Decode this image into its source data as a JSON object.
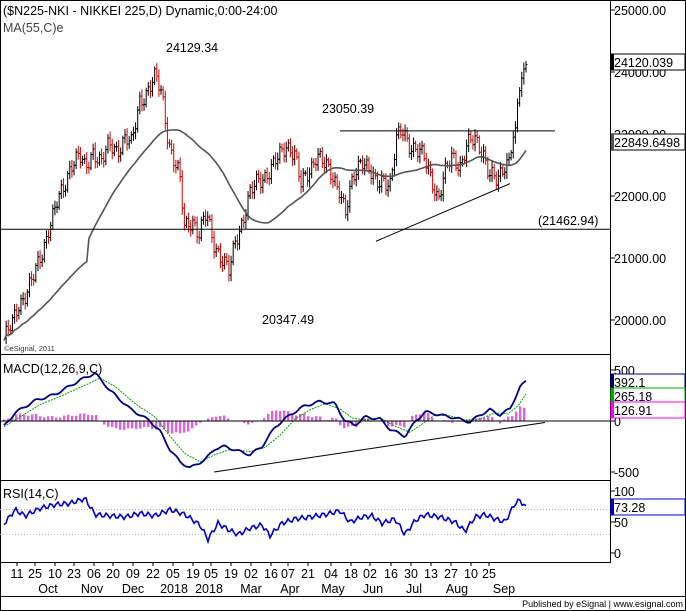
{
  "header": {
    "title": "($N225-NKI - NIKKEI 225,D) Dynamic,0:00-24:00",
    "ma_label": "MA(55,C)e",
    "watermark": "©eSignal, 2011",
    "footer": "Published by eSignal | www.esignal.com"
  },
  "colors": {
    "background": "#ffffff",
    "frame": "#000000",
    "bar_up": "#000000",
    "bar_down": "#cc0000",
    "ma_line": "#555555",
    "macd_line": "#000080",
    "signal_line": "#00a000",
    "histogram": "#e060e0",
    "rsi_line": "#0000cc",
    "badge_price": "#000000",
    "badge_ma": "#000000",
    "badge_macd": "#000080",
    "badge_signal": "#00aa00",
    "badge_hist": "#ff00ff"
  },
  "chart_data": [
    {
      "type": "ohlc",
      "title": "($N225-NKI - NIKKEI 225,D) Dynamic,0:00-24:00",
      "ylim": [
        19600,
        25100
      ],
      "y_ticks": [
        "25000.00",
        "24000.00",
        "23000.00",
        "22000.00",
        "21000.00",
        "20000.00"
      ],
      "x_ticks": [
        "11",
        "25",
        "10",
        "23",
        "06",
        "20",
        "09",
        "22",
        "05",
        "19",
        "05",
        "19",
        "02",
        "16",
        "07",
        "21",
        "04",
        "18",
        "02",
        "16",
        "30",
        "13",
        "27",
        "10",
        "25"
      ],
      "month_labels": [
        "Oct",
        "Nov",
        "Dec",
        "2018",
        "2018",
        "Mar",
        "Apr",
        "May",
        "Jun",
        "Jul",
        "Aug",
        "Sep"
      ],
      "annotations": [
        "24129.34",
        "23050.39",
        "20347.49",
        "(21462.94)"
      ],
      "last_price": "24120.039",
      "ma_value": "22849.6498",
      "horizontal_level": 21462.94,
      "series": [
        {
          "name": "MA(55,C)e",
          "kind": "ma"
        }
      ]
    },
    {
      "type": "line",
      "title": "MACD(12,26,9,C)",
      "ylim": [
        -600,
        600
      ],
      "y_ticks": [
        "500",
        "0",
        "-500"
      ],
      "values": {
        "macd": "392.1",
        "signal": "265.18",
        "histogram": "126.91"
      }
    },
    {
      "type": "line",
      "title": "RSI(14,C)",
      "ylim": [
        -5,
        110
      ],
      "y_ticks": [
        "100",
        "50",
        "0"
      ],
      "value": "73.28",
      "levels": [
        30,
        70
      ]
    }
  ]
}
